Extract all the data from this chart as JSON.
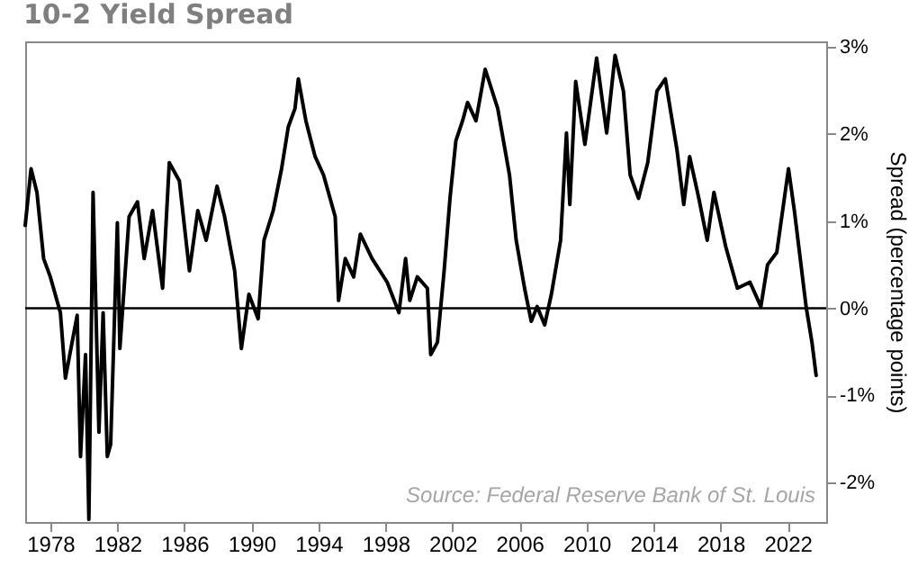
{
  "chart_data": {
    "type": "line",
    "title": "10-2 Yield Spread",
    "ylabel": "Spread (percentage points)",
    "x": [
      1976.5,
      1976.85,
      1977.2,
      1977.6,
      1978.0,
      1978.6,
      1978.9,
      1979.6,
      1979.8,
      1980.1,
      1980.3,
      1980.55,
      1980.9,
      1981.15,
      1981.4,
      1981.6,
      1982.0,
      1982.15,
      1982.7,
      1983.2,
      1983.6,
      1984.1,
      1984.7,
      1985.1,
      1985.7,
      1986.3,
      1986.8,
      1987.3,
      1987.95,
      1988.4,
      1989.0,
      1989.4,
      1989.85,
      1990.4,
      1990.75,
      1991.3,
      1991.8,
      1992.2,
      1992.6,
      1992.8,
      1993.25,
      1993.8,
      1994.3,
      1995.0,
      1995.2,
      1995.6,
      1996.1,
      1996.5,
      1997.2,
      1998.1,
      1998.8,
      1999.2,
      1999.45,
      1999.9,
      2000.5,
      2000.7,
      2001.1,
      2001.5,
      2001.85,
      2002.2,
      2002.6,
      2002.9,
      2003.4,
      2003.95,
      2004.7,
      2005.4,
      2005.8,
      2006.3,
      2006.7,
      2007.05,
      2007.5,
      2007.9,
      2008.45,
      2008.8,
      2009.0,
      2009.35,
      2009.9,
      2010.6,
      2011.2,
      2011.7,
      2012.2,
      2012.6,
      2013.1,
      2013.65,
      2014.2,
      2014.7,
      2015.4,
      2015.8,
      2016.15,
      2016.7,
      2017.2,
      2017.6,
      2018.3,
      2019.0,
      2019.75,
      2020.4,
      2020.8,
      2021.35,
      2022.05,
      2022.4,
      2022.75,
      2023.1,
      2023.45,
      2023.7
    ],
    "series": [
      {
        "color": "#000000",
        "values": [
          0.95,
          1.6,
          1.33,
          0.57,
          0.36,
          -0.05,
          -0.8,
          -0.08,
          -1.7,
          -0.53,
          -2.42,
          1.33,
          -1.42,
          -0.05,
          -1.7,
          -1.56,
          0.98,
          -0.46,
          1.05,
          1.22,
          0.57,
          1.12,
          0.23,
          1.67,
          1.46,
          0.43,
          1.12,
          0.78,
          1.4,
          1.05,
          0.43,
          -0.46,
          0.16,
          -0.12,
          0.78,
          1.12,
          1.6,
          2.08,
          2.29,
          2.63,
          2.15,
          1.74,
          1.53,
          1.05,
          0.09,
          0.57,
          0.36,
          0.85,
          0.57,
          0.3,
          -0.05,
          0.57,
          0.09,
          0.36,
          0.23,
          -0.53,
          -0.39,
          0.43,
          1.26,
          1.92,
          2.15,
          2.36,
          2.15,
          2.74,
          2.29,
          1.53,
          0.78,
          0.23,
          -0.15,
          0.02,
          -0.19,
          0.16,
          0.78,
          2.01,
          1.19,
          2.6,
          1.88,
          2.87,
          2.01,
          2.9,
          2.49,
          1.53,
          1.26,
          1.67,
          2.49,
          2.63,
          1.81,
          1.19,
          1.74,
          1.26,
          0.78,
          1.33,
          0.71,
          0.23,
          0.3,
          0.02,
          0.5,
          0.64,
          1.6,
          1.12,
          0.57,
          0.02,
          -0.39,
          -0.77
        ]
      }
    ],
    "xlim": [
      1976.5,
      2024.3
    ],
    "xticks": [
      1978,
      1982,
      1986,
      1990,
      1994,
      1998,
      2002,
      2006,
      2010,
      2014,
      2018,
      2022
    ],
    "ylim": [
      -2.45,
      3.06
    ],
    "yticks": [
      {
        "value": -2,
        "label": "-2%"
      },
      {
        "value": -1,
        "label": "-1%"
      },
      {
        "value": 0,
        "label": "0%"
      },
      {
        "value": 1,
        "label": "1%"
      },
      {
        "value": 2,
        "label": "2%"
      },
      {
        "value": 3,
        "label": "3%"
      }
    ],
    "ref_lines": [
      {
        "axis": "y",
        "value": 0,
        "color": "#000000"
      }
    ],
    "annotations": [
      "Source: Federal Reserve Bank of St. Louis"
    ],
    "grid": false
  }
}
